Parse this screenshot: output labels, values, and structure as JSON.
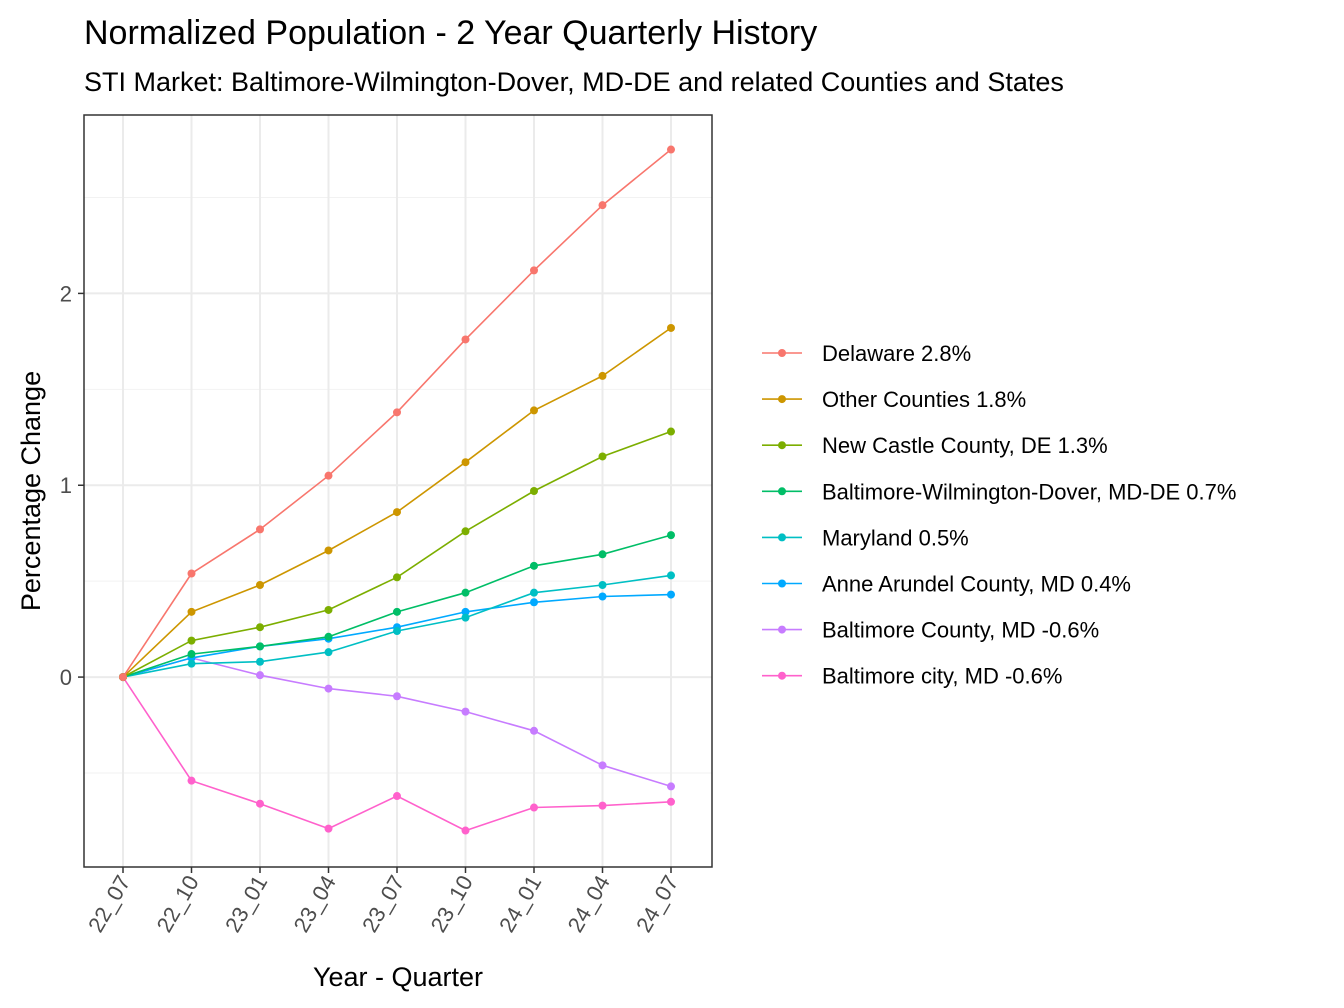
{
  "chart_data": {
    "type": "line",
    "title": "Normalized Population - 2 Year Quarterly History",
    "subtitle": "STI Market: Baltimore-Wilmington-Dover, MD-DE and related Counties and States",
    "xlabel": "Year - Quarter",
    "ylabel": "Percentage Change",
    "categories": [
      "22_07",
      "22_10",
      "23_01",
      "23_04",
      "23_07",
      "23_10",
      "24_01",
      "24_04",
      "24_07"
    ],
    "ylim": [
      -0.99,
      2.93
    ],
    "yticks": [
      0,
      1,
      2
    ],
    "ytick_labels": [
      "0",
      "1",
      "2"
    ],
    "grid": true,
    "legend_position": "right",
    "series": [
      {
        "name": "Delaware 2.8%",
        "color": "#F8766D",
        "values": [
          0,
          0.54,
          0.77,
          1.05,
          1.38,
          1.76,
          2.12,
          2.46,
          2.75
        ]
      },
      {
        "name": "Other Counties 1.8%",
        "color": "#CD9600",
        "values": [
          0,
          0.34,
          0.48,
          0.66,
          0.86,
          1.12,
          1.39,
          1.57,
          1.82
        ]
      },
      {
        "name": "New Castle County, DE 1.3%",
        "color": "#7CAE00",
        "values": [
          0,
          0.19,
          0.26,
          0.35,
          0.52,
          0.76,
          0.97,
          1.15,
          1.28
        ]
      },
      {
        "name": "Baltimore-Wilmington-Dover, MD-DE 0.7%",
        "color": "#00BE67",
        "values": [
          0,
          0.12,
          0.16,
          0.21,
          0.34,
          0.44,
          0.58,
          0.64,
          0.74
        ]
      },
      {
        "name": "Maryland 0.5%",
        "color": "#00BFC4",
        "values": [
          0,
          0.07,
          0.08,
          0.13,
          0.24,
          0.31,
          0.44,
          0.48,
          0.53
        ]
      },
      {
        "name": "Anne Arundel County, MD 0.4%",
        "color": "#00A9FF",
        "values": [
          0,
          0.1,
          0.16,
          0.2,
          0.26,
          0.34,
          0.39,
          0.42,
          0.43
        ]
      },
      {
        "name": "Baltimore County, MD -0.6%",
        "color": "#C77CFF",
        "values": [
          0,
          0.1,
          0.01,
          -0.06,
          -0.1,
          -0.18,
          -0.28,
          -0.46,
          -0.57
        ]
      },
      {
        "name": "Baltimore city, MD -0.6%",
        "color": "#FF61CC",
        "values": [
          0,
          -0.54,
          -0.66,
          -0.79,
          -0.62,
          -0.8,
          -0.68,
          -0.67,
          -0.65
        ]
      }
    ]
  }
}
